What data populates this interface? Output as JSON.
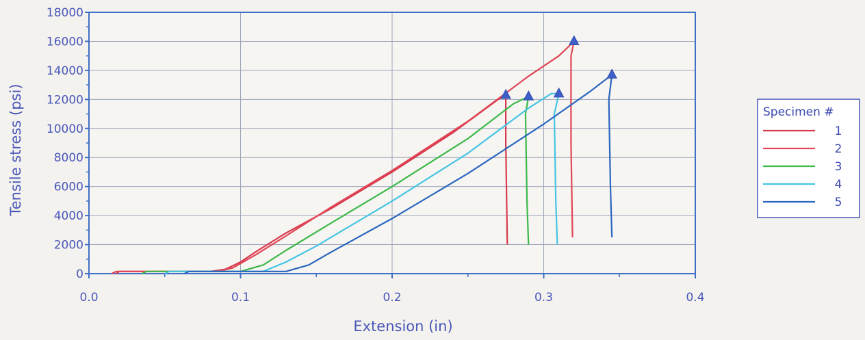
{
  "chart_data": {
    "type": "line",
    "xlabel": "Extension (in)",
    "ylabel": "Tensile stress (psi)",
    "xlim": [
      0.0,
      0.4
    ],
    "ylim": [
      0,
      18000
    ],
    "x_ticks": [
      "0.0",
      "0.1",
      "0.2",
      "0.3",
      "0.4"
    ],
    "y_ticks": [
      "0",
      "2000",
      "4000",
      "6000",
      "8000",
      "10000",
      "12000",
      "14000",
      "16000",
      "18000"
    ],
    "grid": true,
    "legend": {
      "title": "Specimen #",
      "placement": "right"
    },
    "series": [
      {
        "name": "1",
        "color": "#d83a4e",
        "marker": {
          "x": 0.275,
          "y": 12300
        },
        "points": [
          [
            0.018,
            0
          ],
          [
            0.02,
            150
          ],
          [
            0.045,
            150
          ],
          [
            0.08,
            150
          ],
          [
            0.09,
            300
          ],
          [
            0.1,
            800
          ],
          [
            0.11,
            1500
          ],
          [
            0.13,
            2800
          ],
          [
            0.16,
            4500
          ],
          [
            0.2,
            7000
          ],
          [
            0.24,
            9700
          ],
          [
            0.27,
            12000
          ],
          [
            0.275,
            12300
          ],
          [
            0.275,
            9000
          ],
          [
            0.276,
            2000
          ]
        ]
      },
      {
        "name": "2",
        "color": "#e04555",
        "marker": {
          "x": 0.32,
          "y": 16000
        },
        "points": [
          [
            0.015,
            0
          ],
          [
            0.018,
            150
          ],
          [
            0.04,
            150
          ],
          [
            0.085,
            150
          ],
          [
            0.095,
            400
          ],
          [
            0.11,
            1300
          ],
          [
            0.13,
            2600
          ],
          [
            0.16,
            4600
          ],
          [
            0.2,
            7100
          ],
          [
            0.25,
            10500
          ],
          [
            0.29,
            13600
          ],
          [
            0.31,
            15000
          ],
          [
            0.32,
            16000
          ],
          [
            0.318,
            15000
          ],
          [
            0.318,
            9000
          ],
          [
            0.319,
            2500
          ]
        ]
      },
      {
        "name": "3",
        "color": "#3cb84a",
        "marker": {
          "x": 0.29,
          "y": 12200
        },
        "points": [
          [
            0.035,
            0
          ],
          [
            0.038,
            150
          ],
          [
            0.1,
            150
          ],
          [
            0.115,
            600
          ],
          [
            0.13,
            1600
          ],
          [
            0.16,
            3500
          ],
          [
            0.2,
            6000
          ],
          [
            0.25,
            9300
          ],
          [
            0.28,
            11700
          ],
          [
            0.29,
            12200
          ],
          [
            0.288,
            11000
          ],
          [
            0.289,
            5000
          ],
          [
            0.29,
            2000
          ]
        ]
      },
      {
        "name": "4",
        "color": "#43c4e3",
        "marker": {
          "x": 0.31,
          "y": 12400
        },
        "points": [
          [
            0.05,
            0
          ],
          [
            0.053,
            150
          ],
          [
            0.115,
            150
          ],
          [
            0.13,
            800
          ],
          [
            0.15,
            1900
          ],
          [
            0.2,
            5000
          ],
          [
            0.25,
            8300
          ],
          [
            0.29,
            11400
          ],
          [
            0.305,
            12400
          ],
          [
            0.31,
            12400
          ],
          [
            0.307,
            11000
          ],
          [
            0.308,
            5000
          ],
          [
            0.309,
            2000
          ]
        ]
      },
      {
        "name": "5",
        "color": "#2a65bf",
        "marker": {
          "x": 0.345,
          "y": 13700
        },
        "points": [
          [
            0.063,
            0
          ],
          [
            0.066,
            150
          ],
          [
            0.13,
            150
          ],
          [
            0.145,
            600
          ],
          [
            0.16,
            1500
          ],
          [
            0.2,
            3800
          ],
          [
            0.25,
            6900
          ],
          [
            0.3,
            10300
          ],
          [
            0.33,
            12500
          ],
          [
            0.345,
            13700
          ],
          [
            0.343,
            12000
          ],
          [
            0.344,
            6000
          ],
          [
            0.345,
            2500
          ]
        ]
      }
    ]
  }
}
